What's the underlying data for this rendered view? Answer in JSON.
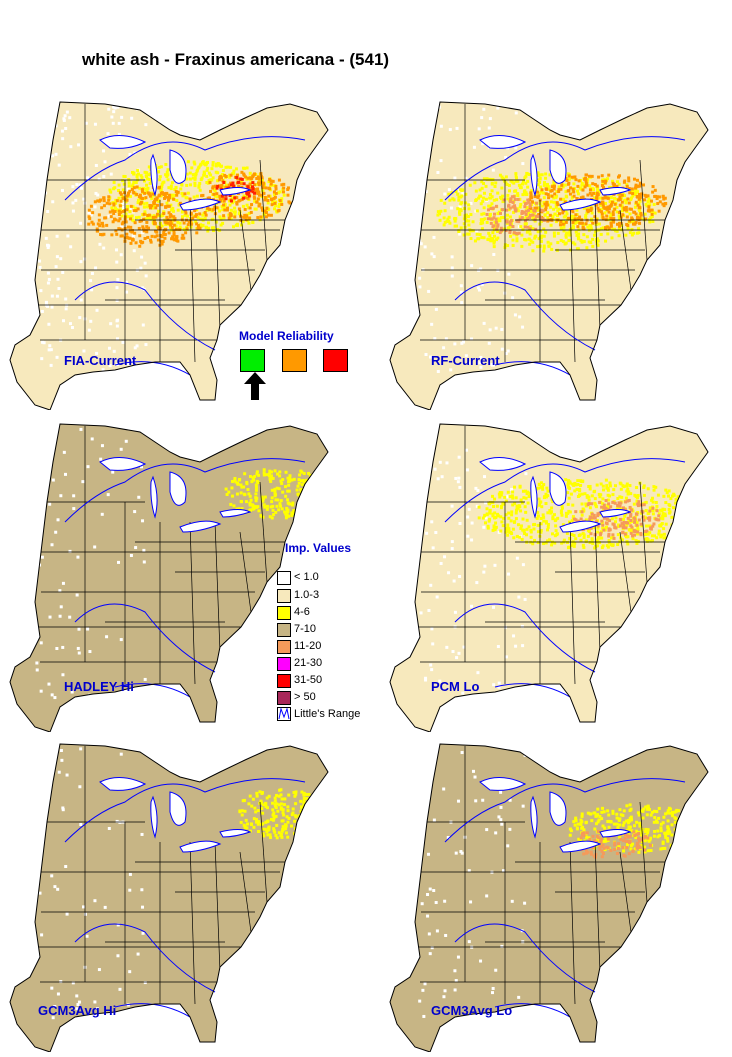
{
  "title": "white ash - Fraxinus americana - (541)",
  "maps": [
    {
      "label": "FIA-Current",
      "scheme": "fia"
    },
    {
      "label": "RF-Current",
      "scheme": "rf"
    },
    {
      "label": "HADLEY Hi",
      "scheme": "hadley"
    },
    {
      "label": "PCM Lo",
      "scheme": "pcm"
    },
    {
      "label": "GCM3Avg Hi",
      "scheme": "gcmhi"
    },
    {
      "label": "GCM3Avg Lo",
      "scheme": "gcmlo"
    }
  ],
  "model_reliability": {
    "title": "Model Reliability",
    "levels": [
      {
        "color": "#00ee00",
        "selected": true
      },
      {
        "color": "#ff9900",
        "selected": false
      },
      {
        "color": "#ff0000",
        "selected": false
      }
    ]
  },
  "legend": {
    "title": "Imp. Values",
    "items": [
      {
        "label": "< 1.0",
        "color": "#ffffff"
      },
      {
        "label": "1.0-3",
        "color": "#f7e9bd"
      },
      {
        "label": "4-6",
        "color": "#ffff00"
      },
      {
        "label": "7-10",
        "color": "#c7b585"
      },
      {
        "label": "11-20",
        "color": "#f59a5a"
      },
      {
        "label": "21-30",
        "color": "#ff00ff"
      },
      {
        "label": "31-50",
        "color": "#ff0000"
      },
      {
        "label": "> 50",
        "color": "#a8285a"
      },
      {
        "label": "Little's Range",
        "color": "#0000ff"
      }
    ]
  }
}
